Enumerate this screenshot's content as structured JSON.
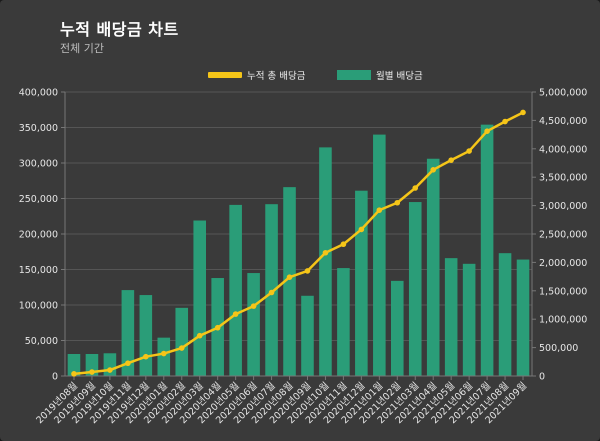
{
  "page": {
    "title": "누적 배당금 차트",
    "subtitle": "전체 기간"
  },
  "chart_data": {
    "type": "bar",
    "categories": [
      "2019년08월",
      "2019년09월",
      "2019년10월",
      "2019년11월",
      "2019년12월",
      "2020년01월",
      "2020년02월",
      "2020년03월",
      "2020년04월",
      "2020년05월",
      "2020년06월",
      "2020년07월",
      "2020년08월",
      "2020년09월",
      "2020년10월",
      "2020년11월",
      "2020년12월",
      "2021년01월",
      "2021년02월",
      "2021년03월",
      "2021년04월",
      "2021년05월",
      "2021년06월",
      "2021년07월",
      "2021년08월",
      "2021년09월"
    ],
    "series": [
      {
        "name": "누적 총 배당금",
        "type": "line",
        "axis": "right",
        "color": "#f5c518",
        "values": [
          38000,
          70000,
          105000,
          225000,
          340000,
          395000,
          492000,
          710000,
          850000,
          1090000,
          1230000,
          1470000,
          1740000,
          1850000,
          2170000,
          2320000,
          2580000,
          2920000,
          3050000,
          3310000,
          3630000,
          3800000,
          3960000,
          4310000,
          4480000,
          4640000
        ]
      },
      {
        "name": "월별 배당금",
        "type": "bar",
        "axis": "left",
        "color": "#2a9d78",
        "values": [
          31000,
          31000,
          32000,
          121000,
          114000,
          54000,
          96000,
          219000,
          138000,
          241000,
          145000,
          242000,
          266000,
          113000,
          322000,
          152000,
          261000,
          340000,
          134000,
          245000,
          306000,
          166000,
          158000,
          354000,
          173000,
          164000
        ]
      }
    ],
    "y_left": {
      "min": 0,
      "max": 400000,
      "ticks": [
        "0",
        "50,000",
        "100,000",
        "150,000",
        "200,000",
        "250,000",
        "300,000",
        "350,000",
        "400,000"
      ]
    },
    "y_right": {
      "min": 0,
      "max": 5000000,
      "ticks": [
        "0",
        "500,000",
        "1,000,000",
        "1,500,000",
        "2,000,000",
        "2,500,000",
        "3,000,000",
        "3,500,000",
        "4,000,000",
        "4,500,000",
        "5,000,000"
      ]
    },
    "grid": "horizontal",
    "legend_position": "top-center"
  }
}
